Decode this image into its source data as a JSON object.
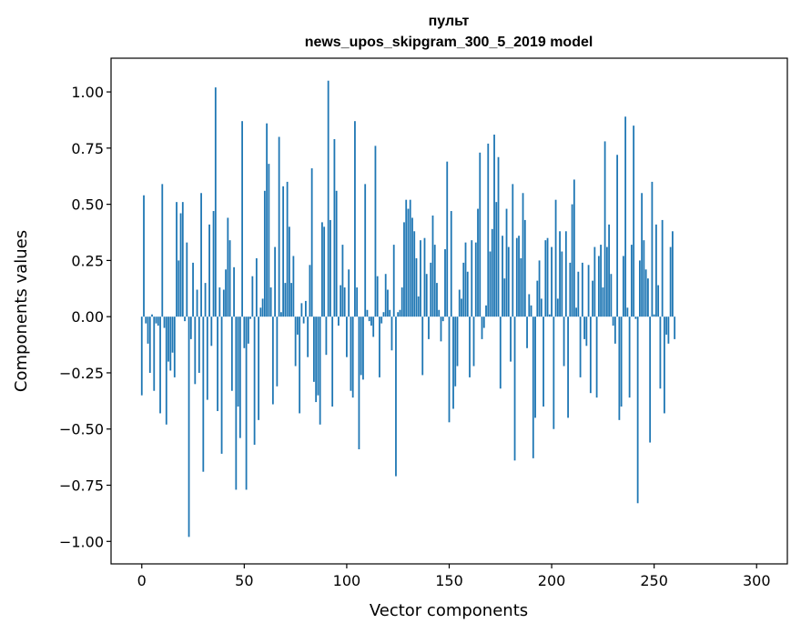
{
  "chart_data": {
    "type": "bar",
    "title_line1": "пульт",
    "title_line2": "news_upos_skipgram_300_5_2019 model",
    "xlabel": "Vector components",
    "ylabel": "Components values",
    "xlim": [
      -15,
      315
    ],
    "ylim": [
      -1.1,
      1.15
    ],
    "x_ticks": [
      0,
      50,
      100,
      150,
      200,
      250,
      300
    ],
    "x_tick_labels": [
      "0",
      "50",
      "100",
      "150",
      "200",
      "250",
      "300"
    ],
    "y_ticks": [
      -1.0,
      -0.75,
      -0.5,
      -0.25,
      0.0,
      0.25,
      0.5,
      0.75,
      1.0
    ],
    "y_tick_labels": [
      "−1.00",
      "−0.75",
      "−0.50",
      "−0.25",
      "0.00",
      "0.25",
      "0.50",
      "0.75",
      "1.00"
    ],
    "bar_color": "#1f77b4",
    "series": [
      {
        "name": "пульт",
        "values": [
          -0.35,
          0.54,
          -0.03,
          -0.12,
          -0.25,
          0.01,
          -0.33,
          -0.03,
          -0.04,
          -0.43,
          0.59,
          -0.05,
          -0.48,
          -0.2,
          -0.24,
          -0.16,
          -0.27,
          0.51,
          0.25,
          0.46,
          0.51,
          -0.02,
          0.33,
          -0.98,
          -0.1,
          0.24,
          -0.3,
          0.12,
          -0.25,
          0.55,
          -0.69,
          0.15,
          -0.37,
          0.41,
          -0.13,
          0.47,
          1.02,
          -0.42,
          0.13,
          -0.61,
          0.12,
          0.21,
          0.44,
          0.34,
          -0.33,
          0.22,
          -0.77,
          -0.4,
          -0.54,
          0.87,
          -0.14,
          -0.77,
          -0.12,
          -0.01,
          0.18,
          -0.57,
          0.26,
          -0.46,
          0.04,
          0.08,
          0.56,
          0.86,
          0.68,
          0.13,
          -0.39,
          0.31,
          -0.31,
          0.8,
          0.02,
          0.58,
          0.15,
          0.6,
          0.4,
          0.15,
          0.27,
          -0.22,
          -0.08,
          -0.43,
          0.06,
          -0.03,
          0.07,
          -0.18,
          0.23,
          0.66,
          -0.29,
          -0.38,
          -0.35,
          -0.48,
          0.42,
          0.4,
          -0.17,
          1.05,
          0.43,
          -0.4,
          0.79,
          0.56,
          -0.04,
          0.14,
          0.32,
          0.13,
          -0.18,
          0.21,
          -0.33,
          -0.36,
          0.87,
          0.13,
          -0.59,
          -0.26,
          -0.28,
          0.59,
          0.03,
          -0.02,
          -0.04,
          -0.09,
          0.76,
          0.18,
          -0.27,
          -0.03,
          0.02,
          0.19,
          0.12,
          0.03,
          -0.15,
          0.32,
          -0.71,
          0.02,
          0.03,
          0.13,
          0.42,
          0.52,
          0.48,
          0.52,
          0.44,
          0.38,
          0.26,
          0.09,
          0.34,
          -0.26,
          0.35,
          0.19,
          -0.1,
          0.24,
          0.45,
          0.32,
          0.15,
          0.03,
          -0.11,
          -0.02,
          0.3,
          0.69,
          -0.47,
          0.47,
          -0.41,
          -0.31,
          -0.22,
          0.12,
          0.08,
          0.24,
          0.33,
          0.2,
          -0.27,
          0.34,
          -0.22,
          0.33,
          0.48,
          0.73,
          -0.1,
          -0.05,
          0.05,
          0.77,
          0.29,
          0.39,
          0.81,
          0.51,
          0.71,
          -0.32,
          0.36,
          0.17,
          0.48,
          0.31,
          -0.2,
          0.59,
          -0.64,
          0.35,
          0.36,
          0.26,
          0.55,
          0.43,
          -0.14,
          0.1,
          0.05,
          -0.63,
          -0.45,
          0.16,
          0.25,
          0.08,
          -0.4,
          0.34,
          0.35,
          0.01,
          0.31,
          -0.5,
          0.52,
          0.08,
          0.38,
          0.29,
          -0.22,
          0.38,
          -0.45,
          0.24,
          0.5,
          0.61,
          0.04,
          0.2,
          -0.27,
          0.24,
          -0.1,
          -0.13,
          0.23,
          -0.34,
          0.16,
          0.31,
          -0.36,
          0.27,
          0.32,
          0.13,
          0.78,
          0.31,
          0.41,
          0.19,
          -0.04,
          -0.12,
          0.72,
          -0.46,
          -0.4,
          0.27,
          0.89,
          0.04,
          -0.36,
          0.32,
          0.85,
          -0.01,
          -0.83,
          0.25,
          0.55,
          0.34,
          0.21,
          0.17,
          -0.56,
          0.6,
          0.01,
          0.41,
          0.14,
          -0.32,
          0.43,
          -0.43,
          -0.08,
          -0.12,
          0.31,
          0.38,
          -0.1
        ]
      }
    ]
  }
}
